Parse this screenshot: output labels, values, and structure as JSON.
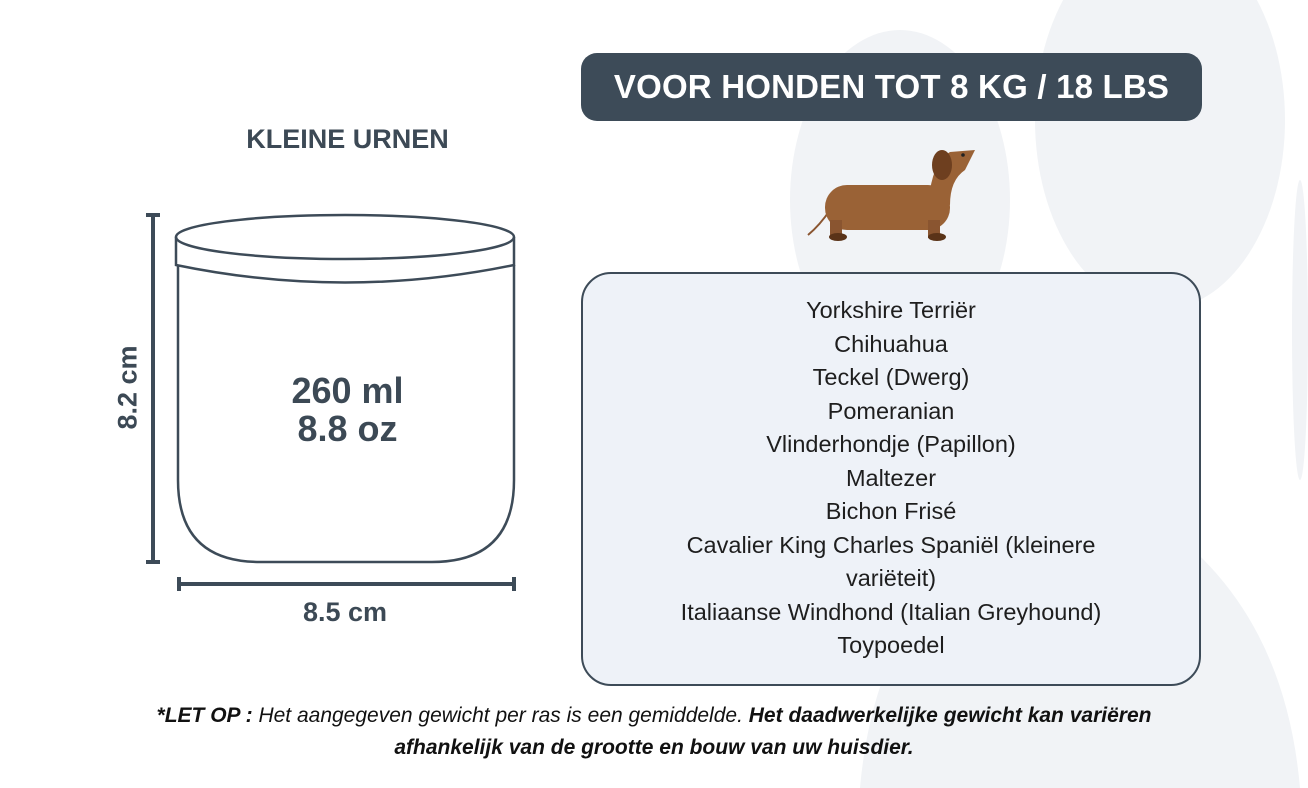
{
  "banner": {
    "text": "VOOR HONDEN TOT 8 KG / 18 LBS"
  },
  "product": {
    "title": "KLEINE URNEN",
    "volume_ml": "260 ml",
    "volume_oz": "8.8 oz",
    "height": "8.2 cm",
    "width": "8.5 cm"
  },
  "dog_icon": "dachshund-illustration",
  "breeds": [
    "Yorkshire Terriër",
    "Chihuahua",
    "Teckel (Dwerg)",
    "Pomeranian",
    "Vlinderhondje (Papillon)",
    "Maltezer",
    "Bichon Frisé",
    "Cavalier King Charles Spaniël (kleinere variëteit)",
    "Italiaanse Windhond (Italian Greyhound)",
    "Toypoedel"
  ],
  "note": {
    "prefix": "*LET OP :",
    "italic": " Het aangegeven gewicht per ras is een gemiddelde. ",
    "bold": "Het daadwerkelijke gewicht kan variëren afhankelijk van de grootte en bouw van uw huisdier."
  },
  "colors": {
    "primary": "#3d4b58",
    "box_bg": "#eef2f8",
    "paw_bg": "#f1f3f6",
    "dog": "#9a6236"
  }
}
